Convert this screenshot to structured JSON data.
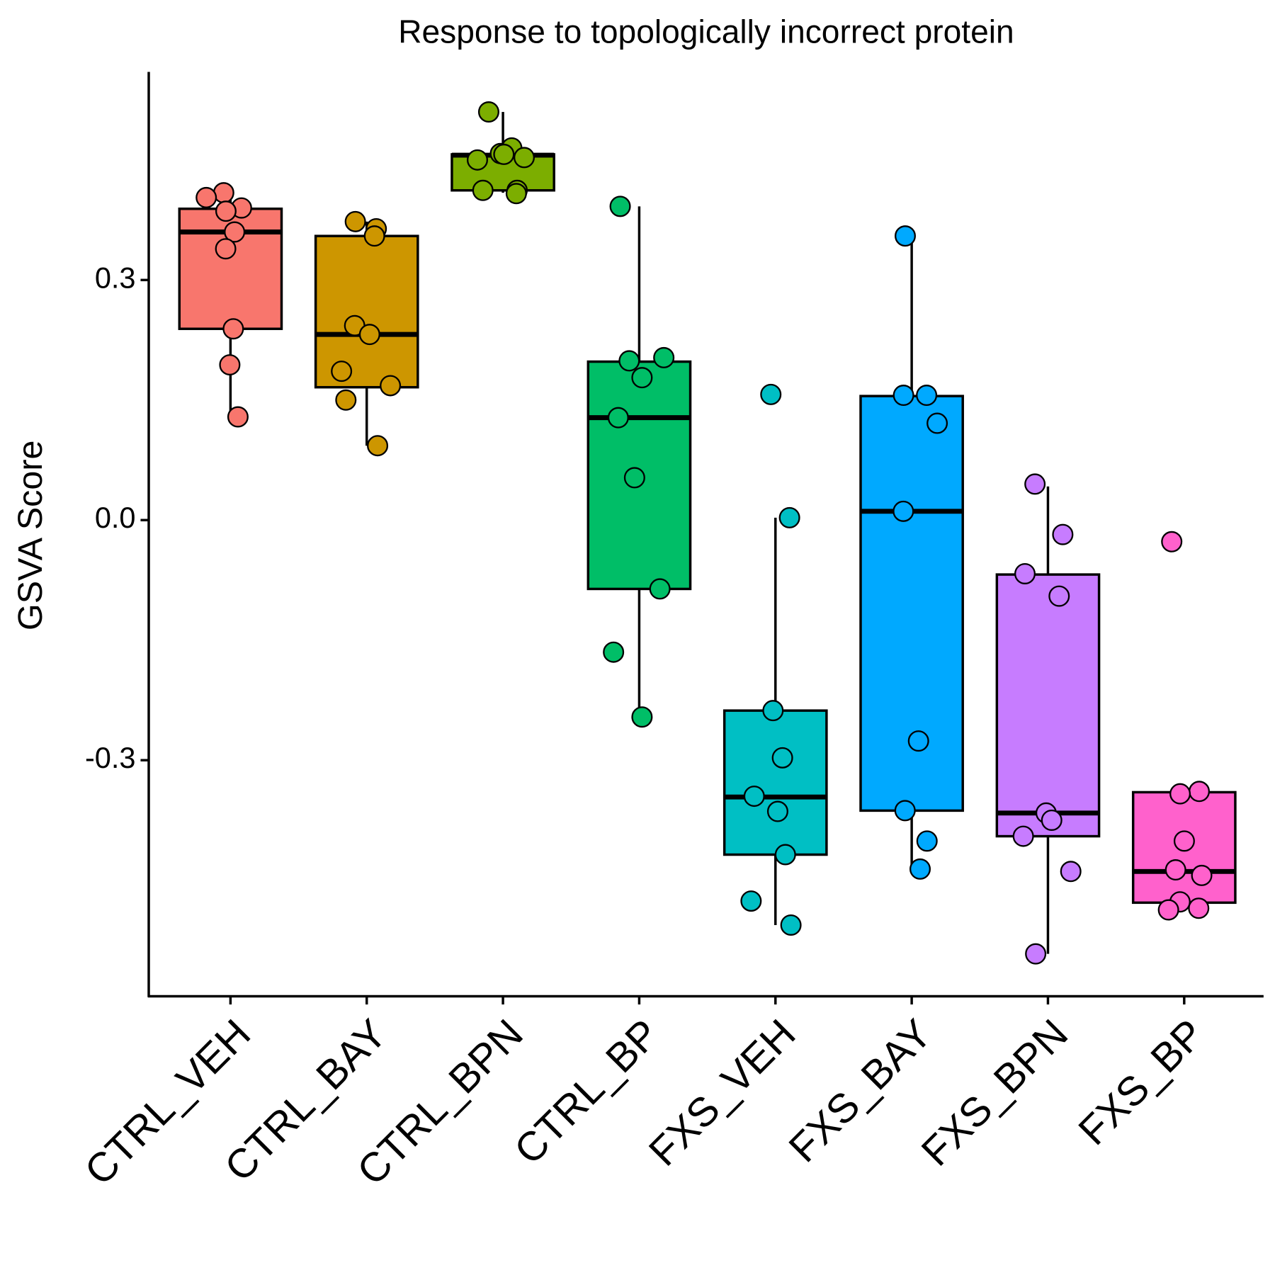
{
  "chart_data": {
    "type": "box",
    "title": "Response to topologically incorrect protein",
    "y_label": "GSVA Score",
    "ylim": [
      -0.595,
      0.56
    ],
    "yticks": [
      0.3,
      {
        "value": 0,
        "label": "0.0"
      },
      -0.3
    ],
    "categories": [
      "CTRL_VEH",
      "CTRL_BAY",
      "CTRL_BPN",
      "CTRL_BP",
      "FXS_VEH",
      "FXS_BAY",
      "FXS_BPN",
      "FXS_BP"
    ],
    "groups": [
      {
        "color": "#F8766D",
        "low": 0.129,
        "q1": 0.239,
        "median": 0.36,
        "q3": 0.389,
        "high": 0.408,
        "points": [
          0.409,
          0.403,
          0.39,
          0.386,
          0.36,
          0.339,
          0.239,
          0.194,
          0.129
        ]
      },
      {
        "color": "#CD9600",
        "low": 0.093,
        "q1": 0.166,
        "median": 0.232,
        "q3": 0.355,
        "high": 0.373,
        "points": [
          0.373,
          0.364,
          0.355,
          0.243,
          0.232,
          0.186,
          0.168,
          0.15,
          0.093
        ]
      },
      {
        "color": "#7CAE00",
        "low": 0.409,
        "q1": 0.412,
        "median": 0.456,
        "q3": 0.457,
        "high": 0.51,
        "points": [
          0.51,
          0.465,
          0.458,
          0.457,
          0.453,
          0.45,
          0.412,
          0.412,
          0.408
        ]
      },
      {
        "color": "#00BE67",
        "low": -0.246,
        "q1": -0.086,
        "median": 0.128,
        "q3": 0.198,
        "high": 0.392,
        "points": [
          0.392,
          0.203,
          0.199,
          0.178,
          0.128,
          0.053,
          -0.086,
          -0.165,
          -0.246
        ]
      },
      {
        "color": "#00BFC4",
        "low": -0.506,
        "q1": -0.418,
        "median": -0.346,
        "q3": -0.238,
        "high": 0.003,
        "points": [
          0.157,
          0.003,
          -0.238,
          -0.297,
          -0.345,
          -0.364,
          -0.418,
          -0.476,
          -0.506
        ]
      },
      {
        "color": "#00A9FF",
        "low": -0.436,
        "q1": -0.363,
        "median": 0.011,
        "q3": 0.155,
        "high": 0.355,
        "points": [
          0.355,
          0.156,
          0.156,
          0.121,
          0.011,
          -0.276,
          -0.363,
          -0.401,
          -0.436
        ]
      },
      {
        "color": "#C77CFF",
        "low": -0.542,
        "q1": -0.395,
        "median": -0.366,
        "q3": -0.068,
        "high": 0.042,
        "points": [
          0.045,
          -0.018,
          -0.067,
          -0.095,
          -0.366,
          -0.375,
          -0.395,
          -0.439,
          -0.542
        ]
      },
      {
        "color": "#FF61CC",
        "low": -0.478,
        "q1": -0.478,
        "median": -0.439,
        "q3": -0.34,
        "high": -0.34,
        "points": [
          -0.027,
          -0.339,
          -0.342,
          -0.401,
          -0.437,
          -0.444,
          -0.477,
          -0.485,
          -0.487
        ]
      }
    ]
  }
}
